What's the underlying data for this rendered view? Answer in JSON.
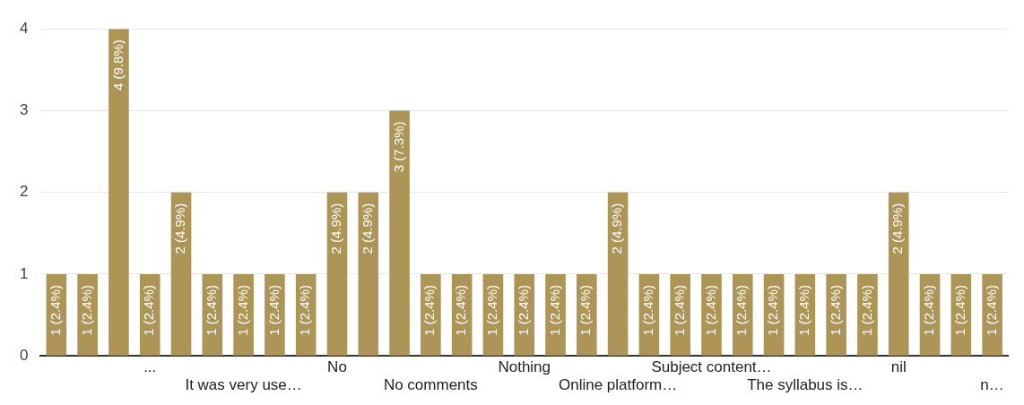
{
  "chart_data": {
    "type": "bar",
    "categories": [
      null,
      null,
      null,
      "...",
      null,
      null,
      "It was very use…",
      null,
      null,
      "No",
      null,
      null,
      "No comments",
      null,
      null,
      "Nothing",
      null,
      null,
      "Online platform…",
      null,
      null,
      "Subject content…",
      null,
      null,
      "The syllabus is…",
      null,
      null,
      "nil",
      null,
      null,
      "n…"
    ],
    "values": [
      1,
      1,
      4,
      1,
      2,
      1,
      1,
      1,
      1,
      2,
      2,
      3,
      1,
      1,
      1,
      1,
      1,
      1,
      2,
      1,
      1,
      1,
      1,
      1,
      1,
      1,
      1,
      2,
      1,
      1,
      1
    ],
    "value_labels": [
      "1 (2.4%)",
      "1 (2.4%)",
      "4 (9.8%)",
      "1 (2.4%)",
      "2 (4.9%)",
      "1 (2.4%)",
      "1 (2.4%)",
      "1 (2.4%)",
      "1 (2.4%)",
      "2 (4.9%)",
      "2 (4.9%)",
      "3 (7.3%)",
      "1 (2.4%)",
      "1 (2.4%)",
      "1 (2.4%)",
      "1 (2.4%)",
      "1 (2.4%)",
      "1 (2.4%)",
      "2 (4.9%)",
      "1 (2.4%)",
      "1 (2.4%)",
      "1 (2.4%)",
      "1 (2.4%)",
      "1 (2.4%)",
      "1 (2.4%)",
      "1 (2.4%)",
      "1 (2.4%)",
      "2 (4.9%)",
      "1 (2.4%)",
      "1 (2.4%)",
      "1 (2.4%)"
    ],
    "color": "#ad9557",
    "ylim": [
      0,
      4
    ],
    "yticks": [
      0,
      1,
      2,
      3,
      4
    ],
    "grid": "y"
  }
}
